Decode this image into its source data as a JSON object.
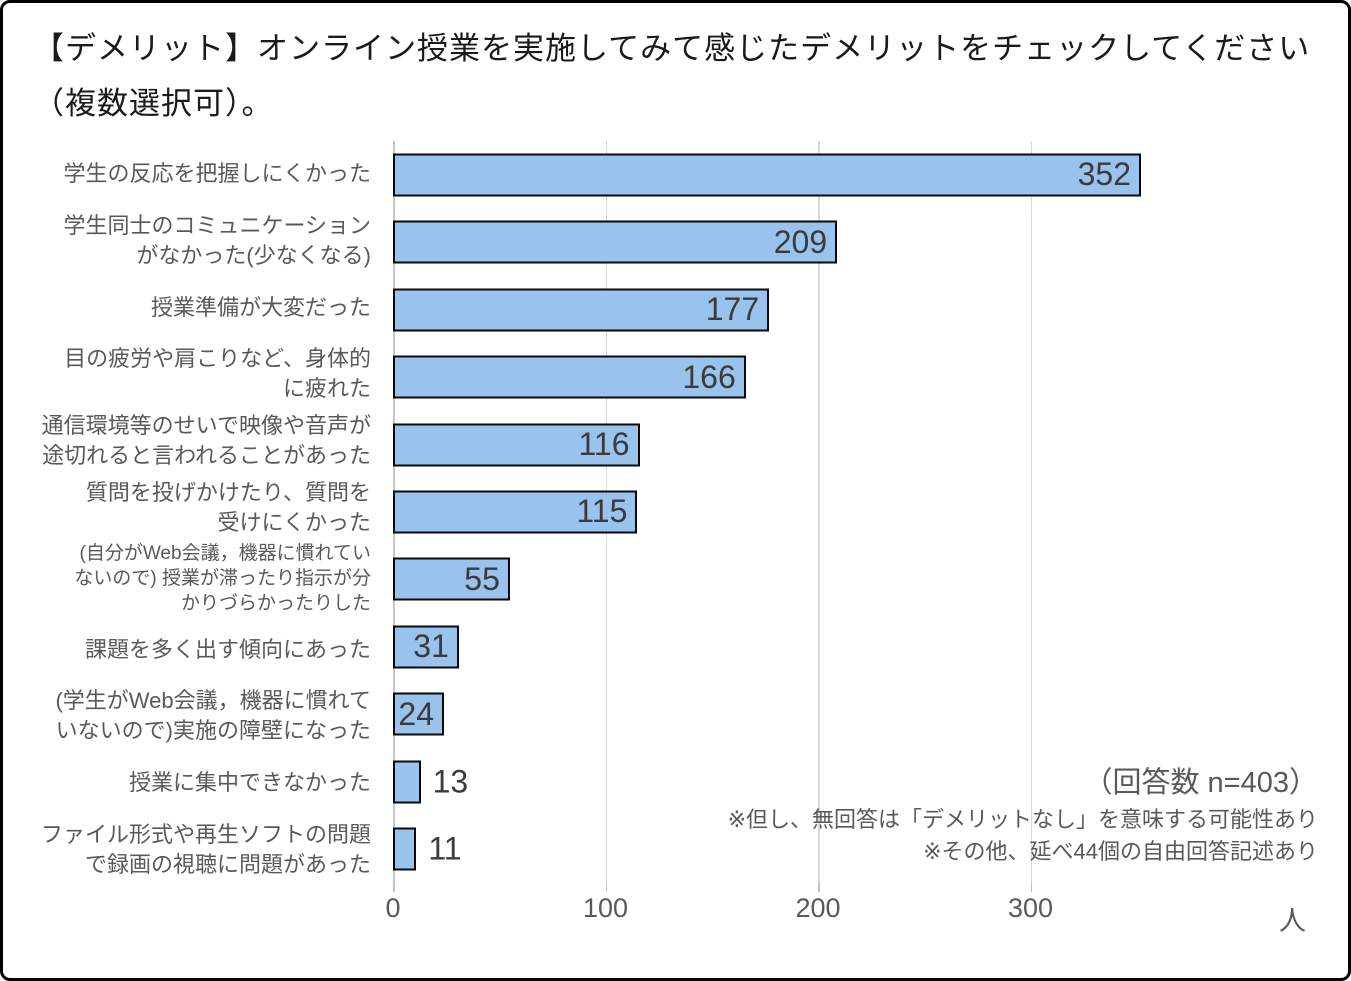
{
  "title": "【デメリット】オンライン授業を実施してみて感じたデメリットをチェックしてください（複数選択可）。",
  "chart_data": {
    "type": "bar",
    "orientation": "horizontal",
    "title": "【デメリット】オンライン授業を実施してみて感じたデメリットをチェックしてください（複数選択可）。",
    "categories": [
      "学生の反応を把握しにくかった",
      "学生同士のコミュニケーションがなかった(少なくなる)",
      "授業準備が大変だった",
      "目の疲労や肩こりなど、身体的に疲れた",
      "通信環境等のせいで映像や音声が途切れると言われることがあった",
      "質問を投げかけたり、質問を受けにくかった",
      "(自分がWeb会議，機器に慣れていないので) 授業が滞ったり指示が分かりづらかったりした",
      "課題を多く出す傾向にあった",
      "(学生がWeb会議，機器に慣れていないので)実施の障壁になった",
      "授業に集中できなかった",
      "ファイル形式や再生ソフトの問題で録画の視聴に問題があった"
    ],
    "category_lines": [
      [
        "学生の反応を把握しにくかった"
      ],
      [
        "学生同士のコミュニケーション",
        "がなかった(少なくなる)"
      ],
      [
        "授業準備が大変だった"
      ],
      [
        "目の疲労や肩こりなど、身体的",
        "に疲れた"
      ],
      [
        "通信環境等のせいで映像や音声が",
        "途切れると言われることがあった"
      ],
      [
        "質問を投げかけたり、質問を",
        "受けにくかった"
      ],
      [
        "(自分がWeb会議，機器に慣れてい",
        "ないので) 授業が滞ったり指示が分",
        "かりづらかったりした"
      ],
      [
        "課題を多く出す傾向にあった"
      ],
      [
        "(学生がWeb会議，機器に慣れて",
        "いないので)実施の障壁になった"
      ],
      [
        "授業に集中できなかった"
      ],
      [
        "ファイル形式や再生ソフトの問題",
        "で録画の視聴に問題があった"
      ]
    ],
    "values": [
      352,
      209,
      177,
      166,
      116,
      115,
      55,
      31,
      24,
      13,
      11
    ],
    "x_ticks": [
      0,
      100,
      200,
      300
    ],
    "x_tick_labels": [
      "0",
      "100",
      "200",
      "300"
    ],
    "xlim": [
      0,
      400
    ],
    "x_unit": "人",
    "grid": true,
    "legend": "none",
    "bar_color": "#99c2ec",
    "bar_border_color": "#0a0a0a",
    "value_label_color": "#3b3b3b",
    "category_label_color": "#595959"
  },
  "annotations": {
    "n_note": "（回答数 n=403）",
    "note1": "※但し、無回答は「デメリットなし」を意味する可能性あり",
    "note2": "※その他、延べ44個の自由回答記述あり"
  }
}
